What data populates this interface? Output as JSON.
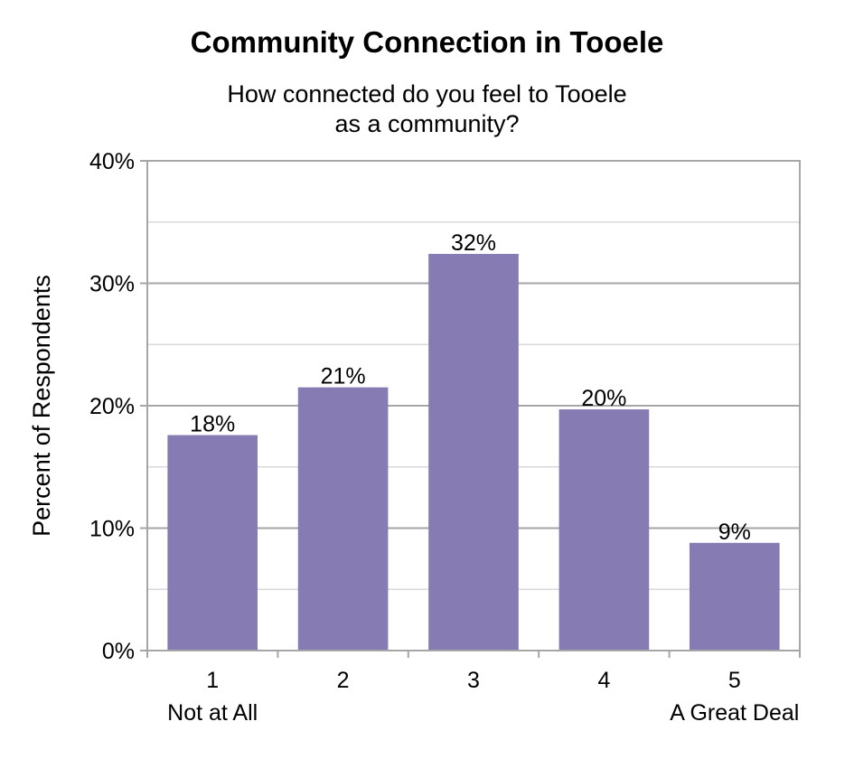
{
  "chart_data": {
    "type": "bar",
    "title": "Community Connection in Tooele",
    "subtitle_lines": [
      "How connected do you feel to Tooele",
      "as a community?"
    ],
    "ylabel": "Percent of Respondents",
    "xlabel": "",
    "categories": [
      "1",
      "2",
      "3",
      "4",
      "5"
    ],
    "category_sublabels": [
      "Not at All",
      "",
      "",
      "",
      "A Great Deal"
    ],
    "values": [
      17.6,
      21.5,
      32.4,
      19.7,
      8.8
    ],
    "data_labels": [
      "18%",
      "21%",
      "32%",
      "20%",
      "9%"
    ],
    "ylim": [
      0,
      40
    ],
    "yticks": [
      0,
      10,
      20,
      30,
      40
    ],
    "ytick_labels": [
      "0%",
      "10%",
      "20%",
      "30%",
      "40%"
    ],
    "grid": true,
    "colors": {
      "bar": "#877bb4",
      "grid_major": "#a6a6a6",
      "grid_minor": "#d9d9d9",
      "frame": "#a6a6a6"
    }
  }
}
